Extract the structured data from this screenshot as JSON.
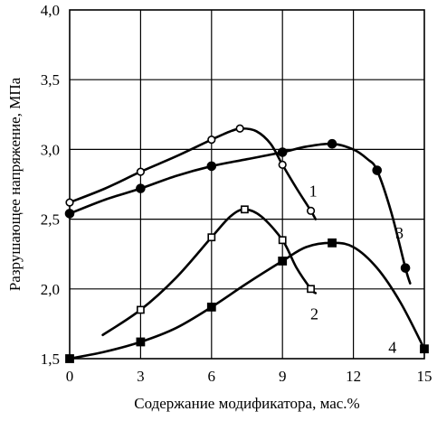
{
  "chart_data": {
    "type": "line",
    "title": "",
    "xlabel": "Содержание модификатора, мас.%",
    "ylabel": "Разрушающее напряжение, МПа",
    "xlim": [
      0,
      15
    ],
    "ylim": [
      1.5,
      4.0
    ],
    "x_ticks": [
      "0",
      "3",
      "6",
      "9",
      "12",
      "15"
    ],
    "y_ticks": [
      "1,5",
      "2,0",
      "2,5",
      "3,0",
      "3,5",
      "4,0"
    ],
    "grid": true,
    "series": [
      {
        "name": "1",
        "marker": "open-circle",
        "points": [
          [
            0,
            2.62
          ],
          [
            3,
            2.84
          ],
          [
            6,
            3.07
          ],
          [
            7.2,
            3.15
          ],
          [
            9,
            2.89
          ],
          [
            10.2,
            2.56
          ]
        ],
        "line": [
          [
            0,
            2.62
          ],
          [
            1.5,
            2.72
          ],
          [
            3,
            2.84
          ],
          [
            4.5,
            2.95
          ],
          [
            6,
            3.07
          ],
          [
            6.8,
            3.13
          ],
          [
            7.3,
            3.15
          ],
          [
            7.9,
            3.13
          ],
          [
            8.5,
            3.04
          ],
          [
            9,
            2.89
          ],
          [
            9.6,
            2.72
          ],
          [
            10.2,
            2.56
          ],
          [
            10.4,
            2.5
          ]
        ]
      },
      {
        "name": "2",
        "marker": "open-square",
        "points": [
          [
            3,
            1.85
          ],
          [
            6,
            2.37
          ],
          [
            7.4,
            2.57
          ],
          [
            9,
            2.35
          ],
          [
            10.2,
            2.0
          ]
        ],
        "line": [
          [
            1.4,
            1.67
          ],
          [
            3,
            1.85
          ],
          [
            4.5,
            2.08
          ],
          [
            6,
            2.37
          ],
          [
            6.8,
            2.52
          ],
          [
            7.4,
            2.57
          ],
          [
            8.1,
            2.52
          ],
          [
            9,
            2.35
          ],
          [
            9.6,
            2.15
          ],
          [
            10.2,
            2.0
          ],
          [
            10.4,
            1.97
          ]
        ]
      },
      {
        "name": "3",
        "marker": "filled-circle",
        "points": [
          [
            0,
            2.54
          ],
          [
            3,
            2.72
          ],
          [
            6,
            2.88
          ],
          [
            9,
            2.98
          ],
          [
            11.1,
            3.04
          ],
          [
            13,
            2.85
          ],
          [
            14.2,
            2.15
          ]
        ],
        "line": [
          [
            0,
            2.54
          ],
          [
            1.5,
            2.64
          ],
          [
            3,
            2.72
          ],
          [
            4.5,
            2.81
          ],
          [
            6,
            2.88
          ],
          [
            7.5,
            2.93
          ],
          [
            9,
            2.98
          ],
          [
            10,
            3.02
          ],
          [
            11.1,
            3.04
          ],
          [
            12,
            3.0
          ],
          [
            12.6,
            2.93
          ],
          [
            13,
            2.85
          ],
          [
            13.6,
            2.55
          ],
          [
            14.2,
            2.15
          ],
          [
            14.4,
            2.04
          ]
        ]
      },
      {
        "name": "4",
        "marker": "filled-square",
        "points": [
          [
            0,
            1.5
          ],
          [
            3,
            1.62
          ],
          [
            6,
            1.87
          ],
          [
            9,
            2.2
          ],
          [
            11.1,
            2.33
          ],
          [
            15,
            1.57
          ]
        ],
        "line": [
          [
            0,
            1.5
          ],
          [
            1.5,
            1.55
          ],
          [
            3,
            1.62
          ],
          [
            4.5,
            1.72
          ],
          [
            6,
            1.87
          ],
          [
            7.5,
            2.04
          ],
          [
            9,
            2.2
          ],
          [
            10,
            2.3
          ],
          [
            11.1,
            2.33
          ],
          [
            12,
            2.3
          ],
          [
            13,
            2.15
          ],
          [
            14,
            1.9
          ],
          [
            15,
            1.57
          ]
        ]
      }
    ],
    "curve_labels": [
      {
        "text": "1",
        "x": 10.3,
        "y": 2.7
      },
      {
        "text": "2",
        "x": 10.35,
        "y": 1.82
      },
      {
        "text": "3",
        "x": 13.95,
        "y": 2.4
      },
      {
        "text": "4",
        "x": 13.65,
        "y": 1.58
      }
    ]
  }
}
